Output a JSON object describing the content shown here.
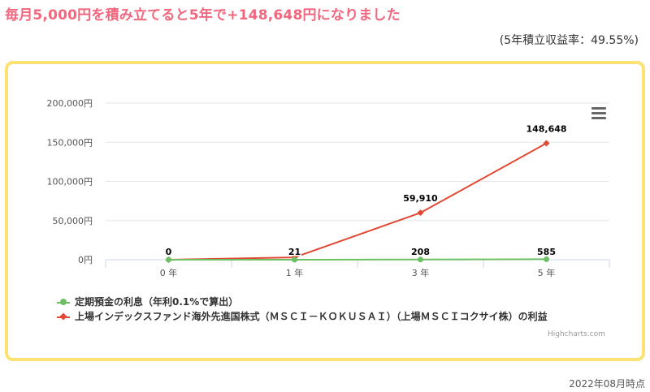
{
  "header": {
    "headline": "毎月5,000円を積み立てると5年で+148,648円になりました",
    "subtitle": "(5年積立収益率：49.55%)"
  },
  "chart_data": {
    "type": "line",
    "categories": [
      "0 年",
      "1 年",
      "3 年",
      "5 年"
    ],
    "y_ticks": [
      "0円",
      "50,000円",
      "100,000円",
      "150,000円",
      "200,000円"
    ],
    "ylim": [
      0,
      200000
    ],
    "grid": true,
    "legend_position": "bottom-left",
    "series": [
      {
        "name": "定期預金の利息（年利0.1%で算出）",
        "color": "#6cbf62",
        "marker": "circle",
        "values": [
          0,
          21,
          208,
          585
        ],
        "labels": []
      },
      {
        "name": "上場インデックスファンド海外先進国株式（ＭＳＣＩ－ＫＯＫＵＳＡＩ）（上場ＭＳＣＩコクサイ株）の利益",
        "color": "#e04a35",
        "marker": "diamond",
        "values": [
          0,
          3000,
          59910,
          148648
        ],
        "labels": [
          "0",
          "",
          "59,910",
          "148,648"
        ]
      }
    ],
    "point_labels": [
      "0",
      "21",
      "208",
      "585",
      "59,910",
      "148,648"
    ]
  },
  "chart": {
    "credits": "Highcharts.com"
  },
  "footer": {
    "as_of": "2022年08月時点"
  }
}
